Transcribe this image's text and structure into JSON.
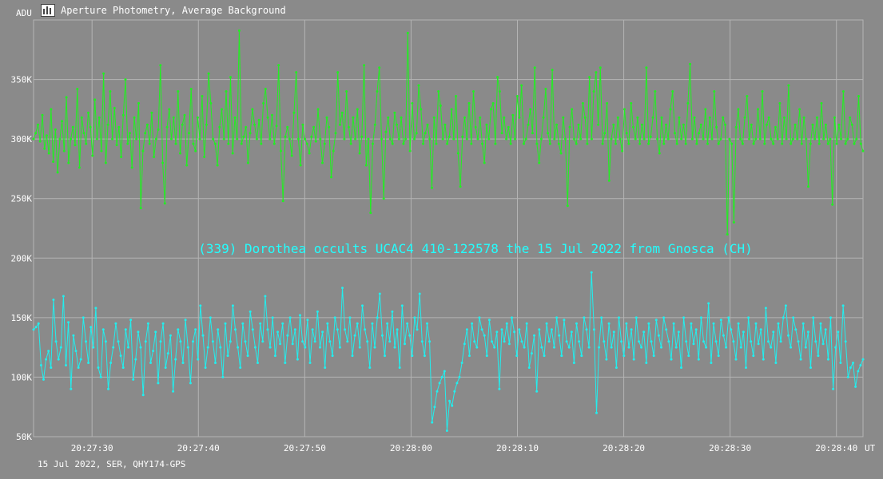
{
  "header": {
    "y_unit": "ADU",
    "title": "Aperture Photometry, Average Background",
    "icon": "chart-app-icon"
  },
  "footer": {
    "text": "15 Jul 2022, SER, QHY174-GPS"
  },
  "colors": {
    "background": "#8a8a8a",
    "grid": "#b4b4b4",
    "series1": "#22ee22",
    "series2": "#22eeee",
    "annotation": "#22ffff"
  },
  "chart_data": {
    "type": "line",
    "title": "Aperture Photometry, Average Background",
    "ylabel": "ADU",
    "xlabel": "UT",
    "annotation": "(339) Dorothea occults UCAC4 410-122578 the 15 Jul 2022 from Gnosca (CH)",
    "ylim": [
      50000,
      400000
    ],
    "xlim": [
      0,
      780
    ],
    "grid": true,
    "y_ticks": [
      {
        "value": 50000,
        "label": "50K"
      },
      {
        "value": 100000,
        "label": "100K"
      },
      {
        "value": 150000,
        "label": "150K"
      },
      {
        "value": 200000,
        "label": "200K"
      },
      {
        "value": 250000,
        "label": "250K"
      },
      {
        "value": 300000,
        "label": "300K"
      },
      {
        "value": 350000,
        "label": "350K"
      }
    ],
    "x_ticks": [
      {
        "value": 55,
        "label": "20:27:30"
      },
      {
        "value": 155,
        "label": "20:27:40"
      },
      {
        "value": 255,
        "label": "20:27:50"
      },
      {
        "value": 355,
        "label": "20:28:00"
      },
      {
        "value": 455,
        "label": "20:28:10"
      },
      {
        "value": 555,
        "label": "20:28:20"
      },
      {
        "value": 655,
        "label": "20:28:30"
      },
      {
        "value": 755,
        "label": "20:28:40"
      }
    ],
    "x_unit_label": "UT",
    "series": [
      {
        "values": [
          300000,
          305000,
          312000,
          298000,
          320000,
          292000,
          303000,
          288000,
          325000,
          281000,
          308000,
          272000,
          300000,
          315000,
          290000,
          335000,
          280000,
          300000,
          310000,
          295000,
          342000,
          276000,
          318000,
          305000,
          296000,
          322000,
          310000,
          286000,
          333000,
          300000,
          318000,
          290000,
          355000,
          280000,
          312000,
          340000,
          300000,
          326000,
          295000,
          310000,
          285000,
          320000,
          350000,
          296000,
          305000,
          276000,
          318000,
          300000,
          330000,
          242000,
          290000,
          305000,
          312000,
          296000,
          322000,
          285000,
          300000,
          308000,
          362000,
          280000,
          246000,
          310000,
          325000,
          300000,
          318000,
          296000,
          340000,
          288000,
          312000,
          320000,
          278000,
          305000,
          342000,
          296000,
          290000,
          318000,
          300000,
          336000,
          285000,
          312000,
          355000,
          330000,
          300000,
          296000,
          278000,
          310000,
          325000,
          300000,
          340000,
          296000,
          352000,
          288000,
          318000,
          300000,
          391000,
          296000,
          302000,
          310000,
          280000,
          305000,
          325000,
          312000,
          300000,
          316000,
          296000,
          330000,
          342000,
          318000,
          300000,
          320000,
          296000,
          311000,
          362000,
          290000,
          248000,
          302000,
          310000,
          300000,
          286000,
          322000,
          356000,
          300000,
          278000,
          312000,
          300000,
          296000,
          288000,
          302000,
          310000,
          298000,
          325000,
          300000,
          280000,
          296000,
          318000,
          310000,
          268000,
          290000,
          305000,
          356000,
          312000,
          322000,
          300000,
          340000,
          310000,
          296000,
          318000,
          300000,
          325000,
          288000,
          302000,
          362000,
          278000,
          300000,
          238000,
          296000,
          312000,
          340000,
          360000,
          300000,
          250000,
          306000,
          318000,
          300000,
          296000,
          322000,
          312000,
          300000,
          318000,
          296000,
          300000,
          389000,
          290000,
          330000,
          300000,
          305000,
          345000,
          325000,
          296000,
          305000,
          312000,
          300000,
          259000,
          318000,
          296000,
          340000,
          328000,
          300000,
          312000,
          296000,
          302000,
          325000,
          300000,
          336000,
          288000,
          260000,
          302000,
          318000,
          300000,
          330000,
          296000,
          340000,
          310000,
          300000,
          318000,
          296000,
          280000,
          312000,
          300000,
          325000,
          330000,
          296000,
          352000,
          340000,
          305000,
          318000,
          300000,
          310000,
          296000,
          320000,
          300000,
          336000,
          318000,
          345000,
          296000,
          300000,
          312000,
          325000,
          305000,
          360000,
          296000,
          280000,
          300000,
          318000,
          342000,
          305000,
          296000,
          358000,
          300000,
          312000,
          296000,
          288000,
          318000,
          300000,
          244000,
          310000,
          325000,
          300000,
          296000,
          312000,
          300000,
          330000,
          318000,
          296000,
          352000,
          300000,
          340000,
          356000,
          312000,
          360000,
          296000,
          305000,
          330000,
          265000,
          300000,
          312000,
          296000,
          318000,
          300000,
          290000,
          325000,
          305000,
          296000,
          330000,
          310000,
          300000,
          318000,
          296000,
          312000,
          300000,
          360000,
          296000,
          302000,
          318000,
          340000,
          300000,
          288000,
          318000,
          296000,
          312000,
          300000,
          325000,
          340000,
          305000,
          296000,
          318000,
          300000,
          312000,
          296000,
          330000,
          363000,
          300000,
          318000,
          296000,
          305000,
          312000,
          300000,
          325000,
          296000,
          318000,
          300000,
          340000,
          310000,
          296000,
          300000,
          318000,
          312000,
          220000,
          300000,
          296000,
          230000,
          310000,
          325000,
          300000,
          296000,
          318000,
          336000,
          300000,
          312000,
          296000,
          300000,
          325000,
          300000,
          340000,
          296000,
          312000,
          318000,
          300000,
          296000,
          310000,
          300000,
          330000,
          296000,
          318000,
          300000,
          345000,
          296000,
          300000,
          312000,
          300000,
          325000,
          296000,
          318000,
          300000,
          260000,
          296000,
          312000,
          300000,
          318000,
          296000,
          330000,
          300000,
          312000,
          296000,
          300000,
          245000,
          318000,
          296000,
          312000,
          300000,
          340000,
          296000,
          300000,
          318000,
          312000,
          296000,
          300000,
          336000,
          296000,
          290000
        ]
      },
      {
        "values": [
          140000,
          142000,
          145000,
          110000,
          98000,
          115000,
          122000,
          108000,
          165000,
          130000,
          115000,
          125000,
          168000,
          110000,
          146000,
          90000,
          135000,
          122000,
          108000,
          115000,
          150000,
          130000,
          112000,
          142000,
          125000,
          158000,
          108000,
          100000,
          140000,
          130000,
          90000,
          112000,
          125000,
          145000,
          130000,
          118000,
          108000,
          140000,
          125000,
          148000,
          98000,
          115000,
          138000,
          125000,
          85000,
          130000,
          145000,
          112000,
          122000,
          138000,
          95000,
          130000,
          145000,
          108000,
          120000,
          135000,
          88000,
          115000,
          140000,
          130000,
          112000,
          148000,
          125000,
          95000,
          130000,
          140000,
          115000,
          160000,
          135000,
          108000,
          125000,
          150000,
          130000,
          112000,
          140000,
          125000,
          100000,
          145000,
          118000,
          130000,
          160000,
          140000,
          125000,
          108000,
          145000,
          130000,
          118000,
          155000,
          140000,
          125000,
          112000,
          145000,
          130000,
          168000,
          140000,
          125000,
          150000,
          118000,
          138000,
          128000,
          145000,
          112000,
          135000,
          150000,
          128000,
          140000,
          115000,
          152000,
          130000,
          125000,
          148000,
          112000,
          140000,
          130000,
          155000,
          125000,
          138000,
          108000,
          145000,
          130000,
          118000,
          150000,
          140000,
          125000,
          175000,
          140000,
          130000,
          150000,
          118000,
          135000,
          145000,
          125000,
          160000,
          140000,
          130000,
          108000,
          145000,
          125000,
          150000,
          170000,
          135000,
          118000,
          145000,
          130000,
          155000,
          125000,
          140000,
          108000,
          160000,
          128000,
          145000,
          135000,
          118000,
          150000,
          140000,
          170000,
          130000,
          118000,
          145000,
          130000,
          62000,
          75000,
          88000,
          95000,
          100000,
          105000,
          55000,
          80000,
          76000,
          88000,
          95000,
          100000,
          112000,
          128000,
          140000,
          118000,
          145000,
          130000,
          125000,
          150000,
          140000,
          135000,
          118000,
          148000,
          130000,
          125000,
          138000,
          90000,
          140000,
          130000,
          145000,
          128000,
          150000,
          138000,
          118000,
          140000,
          130000,
          125000,
          145000,
          108000,
          120000,
          135000,
          88000,
          140000,
          125000,
          118000,
          145000,
          130000,
          140000,
          125000,
          150000,
          135000,
          118000,
          148000,
          130000,
          125000,
          138000,
          112000,
          145000,
          130000,
          118000,
          150000,
          140000,
          125000,
          188000,
          140000,
          70000,
          125000,
          150000,
          130000,
          115000,
          145000,
          125000,
          138000,
          108000,
          150000,
          130000,
          118000,
          145000,
          125000,
          140000,
          115000,
          150000,
          130000,
          125000,
          138000,
          112000,
          145000,
          130000,
          118000,
          148000,
          135000,
          125000,
          150000,
          140000,
          130000,
          115000,
          145000,
          125000,
          138000,
          108000,
          150000,
          130000,
          118000,
          145000,
          128000,
          140000,
          115000,
          150000,
          130000,
          125000,
          162000,
          112000,
          145000,
          130000,
          118000,
          148000,
          135000,
          125000,
          150000,
          140000,
          130000,
          115000,
          145000,
          125000,
          138000,
          108000,
          150000,
          130000,
          118000,
          145000,
          128000,
          140000,
          115000,
          158000,
          130000,
          125000,
          138000,
          112000,
          145000,
          130000,
          150000,
          160000,
          135000,
          125000,
          150000,
          140000,
          130000,
          115000,
          145000,
          125000,
          138000,
          108000,
          150000,
          130000,
          118000,
          145000,
          128000,
          140000,
          115000,
          150000,
          90000,
          125000,
          138000,
          112000,
          160000,
          130000,
          100000,
          108000,
          112000,
          92000,
          105000,
          110000,
          115000
        ]
      }
    ]
  }
}
